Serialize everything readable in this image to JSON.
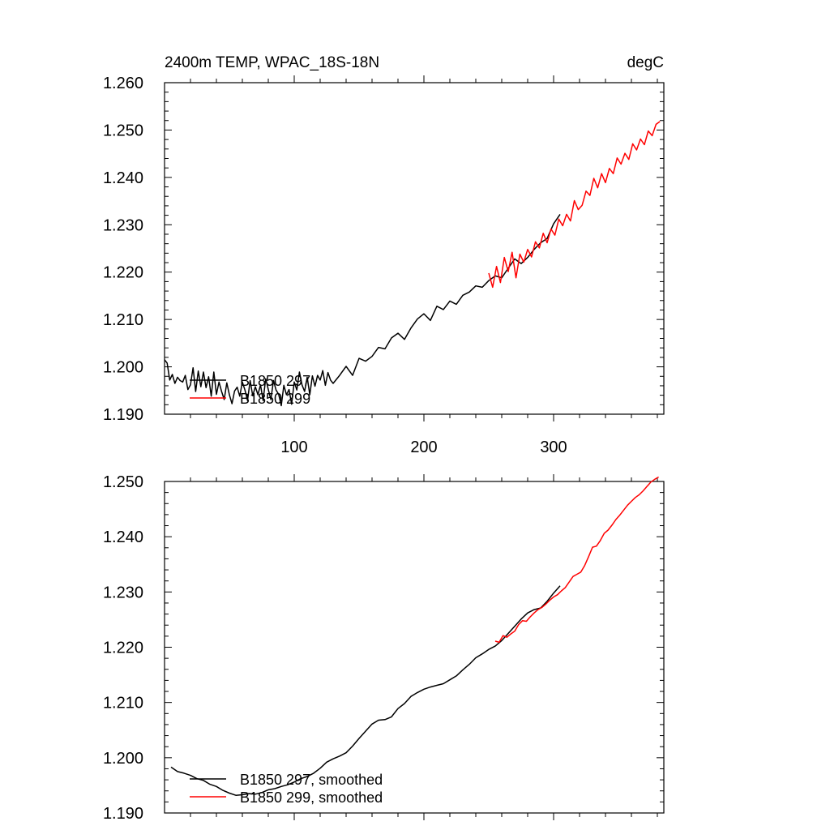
{
  "figure": {
    "background": "#ffffff",
    "axis_color": "#000000"
  },
  "chart_data": [
    {
      "id": "raw",
      "type": "line",
      "title_left": "2400m TEMP, WPAC_18S-18N",
      "title_right": "degC",
      "xlabel": "",
      "ylabel": "",
      "xlim": [
        0,
        385
      ],
      "ylim": [
        1.19,
        1.26
      ],
      "xticks": [
        100,
        200,
        300
      ],
      "xtick_labels": [
        "100",
        "200",
        "300"
      ],
      "yticks": [
        1.19,
        1.2,
        1.21,
        1.22,
        1.23,
        1.24,
        1.25,
        1.26
      ],
      "ytick_labels": [
        "1.190",
        "1.200",
        "1.210",
        "1.220",
        "1.230",
        "1.240",
        "1.250",
        "1.260"
      ],
      "legend": "bottom-left",
      "series": [
        {
          "name": "B1850 297",
          "color": "#000000",
          "x": [
            0,
            2,
            4,
            6,
            8,
            10,
            12,
            14,
            16,
            18,
            20,
            22,
            24,
            26,
            28,
            30,
            32,
            34,
            36,
            38,
            40,
            42,
            44,
            46,
            48,
            50,
            52,
            54,
            56,
            58,
            60,
            62,
            64,
            66,
            68,
            70,
            72,
            74,
            76,
            78,
            80,
            82,
            84,
            86,
            88,
            90,
            92,
            94,
            96,
            98,
            100,
            102,
            104,
            106,
            108,
            110,
            112,
            114,
            116,
            118,
            120,
            122,
            124,
            126,
            128,
            130,
            135,
            140,
            145,
            150,
            155,
            160,
            165,
            170,
            175,
            180,
            185,
            190,
            195,
            200,
            205,
            210,
            215,
            220,
            225,
            230,
            235,
            240,
            245,
            250,
            255,
            260,
            265,
            270,
            275,
            280,
            285,
            290,
            295,
            300,
            305
          ],
          "y": [
            1.2015,
            1.2008,
            1.1972,
            1.1984,
            1.1965,
            1.1978,
            1.1971,
            1.1968,
            1.1982,
            1.1952,
            1.1962,
            1.1998,
            1.1948,
            1.1991,
            1.1958,
            1.1989,
            1.1956,
            1.1979,
            1.1938,
            1.1989,
            1.1942,
            1.1968,
            1.1948,
            1.1931,
            1.1966,
            1.1941,
            1.1922,
            1.1949,
            1.1957,
            1.1938,
            1.1968,
            1.1951,
            1.1929,
            1.1971,
            1.1939,
            1.1958,
            1.1941,
            1.1962,
            1.1929,
            1.1975,
            1.1952,
            1.1931,
            1.1971,
            1.1951,
            1.1942,
            1.1918,
            1.1961,
            1.1941,
            1.1952,
            1.1921,
            1.1968,
            1.1951,
            1.1989,
            1.1962,
            1.1948,
            1.1978,
            1.1941,
            1.1981,
            1.1959,
            1.1982,
            1.1972,
            1.1992,
            1.1961,
            1.1988,
            1.1972,
            1.1965,
            1.1982,
            1.2001,
            1.1982,
            1.2018,
            1.2012,
            1.2022,
            1.2041,
            1.2038,
            1.2061,
            1.2071,
            1.2058,
            1.2082,
            1.2101,
            1.2112,
            1.2098,
            1.2128,
            1.2121,
            1.2139,
            1.2132,
            1.2151,
            1.2158,
            1.2171,
            1.2168,
            1.2182,
            1.2192,
            1.2188,
            1.2208,
            1.2228,
            1.2218,
            1.2231,
            1.2248,
            1.2262,
            1.2271,
            1.2302,
            1.2322
          ]
        },
        {
          "name": "B1850 299",
          "color": "#ff0000",
          "x": [
            250,
            253,
            256,
            259,
            262,
            265,
            268,
            271,
            274,
            277,
            280,
            283,
            286,
            289,
            292,
            295,
            298,
            301,
            304,
            307,
            310,
            313,
            316,
            319,
            322,
            325,
            328,
            331,
            334,
            337,
            340,
            343,
            346,
            349,
            352,
            355,
            358,
            361,
            364,
            367,
            370,
            373,
            376,
            379,
            382
          ],
          "y": [
            1.2198,
            1.2168,
            1.2212,
            1.2178,
            1.2231,
            1.2201,
            1.2242,
            1.2188,
            1.2238,
            1.2221,
            1.2248,
            1.2232,
            1.2264,
            1.2251,
            1.2282,
            1.2262,
            1.2291,
            1.2278,
            1.2312,
            1.2298,
            1.2322,
            1.2308,
            1.2351,
            1.2332,
            1.2341,
            1.2371,
            1.2362,
            1.2398,
            1.2378,
            1.2408,
            1.2389,
            1.2419,
            1.2408,
            1.2441,
            1.2428,
            1.2451,
            1.2438,
            1.2471,
            1.2458,
            1.2481,
            1.2469,
            1.2498,
            1.2488,
            1.2512,
            1.2518
          ]
        }
      ]
    },
    {
      "id": "smoothed",
      "type": "line",
      "xlabel": "",
      "ylabel": "",
      "xlim": [
        0,
        385
      ],
      "ylim": [
        1.19,
        1.25
      ],
      "xticks": [
        100,
        200,
        300
      ],
      "yticks": [
        1.19,
        1.2,
        1.21,
        1.22,
        1.23,
        1.24,
        1.25
      ],
      "ytick_labels": [
        "1.190",
        "1.200",
        "1.210",
        "1.220",
        "1.230",
        "1.240",
        "1.250"
      ],
      "legend": "bottom-left",
      "series": [
        {
          "name": "B1850 297, smoothed",
          "color": "#000000",
          "x": [
            5,
            10,
            15,
            20,
            25,
            30,
            35,
            40,
            45,
            50,
            55,
            60,
            65,
            70,
            75,
            80,
            85,
            90,
            95,
            100,
            105,
            110,
            115,
            120,
            125,
            130,
            135,
            140,
            145,
            150,
            155,
            160,
            165,
            170,
            175,
            180,
            185,
            190,
            195,
            200,
            205,
            210,
            215,
            220,
            225,
            230,
            235,
            240,
            245,
            250,
            255,
            260,
            265,
            270,
            275,
            280,
            285,
            290,
            295,
            300,
            305
          ],
          "y": [
            1.1983,
            1.1975,
            1.1972,
            1.1968,
            1.1962,
            1.1959,
            1.1952,
            1.1948,
            1.1941,
            1.1936,
            1.1932,
            1.1933,
            1.1935,
            1.1934,
            1.1937,
            1.1942,
            1.1944,
            1.1948,
            1.1951,
            1.1956,
            1.1962,
            1.1966,
            1.1972,
            1.1981,
            1.1992,
            1.1998,
            1.2003,
            1.2009,
            1.2021,
            1.2035,
            1.2048,
            1.2061,
            1.2068,
            1.2069,
            1.2074,
            1.2089,
            1.2098,
            1.2111,
            1.2118,
            1.2124,
            1.2128,
            1.2131,
            1.2134,
            1.2141,
            1.2148,
            1.2159,
            1.2169,
            1.2181,
            1.2188,
            1.2196,
            1.2202,
            1.2212,
            1.2225,
            1.2238,
            1.2251,
            1.2262,
            1.2268,
            1.2271,
            1.2283,
            1.2298,
            1.2311
          ]
        },
        {
          "name": "B1850 299, smoothed",
          "color": "#ff0000",
          "x": [
            255,
            258,
            261,
            264,
            267,
            270,
            273,
            276,
            279,
            282,
            285,
            288,
            291,
            294,
            297,
            300,
            303,
            306,
            309,
            312,
            315,
            318,
            321,
            324,
            327,
            330,
            333,
            336,
            339,
            342,
            345,
            348,
            351,
            354,
            357,
            360,
            363,
            366,
            369,
            372,
            375,
            378,
            381
          ],
          "y": [
            1.2211,
            1.2209,
            1.2221,
            1.2218,
            1.2224,
            1.2229,
            1.2241,
            1.2248,
            1.2247,
            1.2255,
            1.2262,
            1.2268,
            1.2272,
            1.2278,
            1.2285,
            1.2291,
            1.2295,
            1.2302,
            1.2308,
            1.2318,
            1.2328,
            1.2332,
            1.2336,
            1.2348,
            1.2364,
            1.2381,
            1.2383,
            1.2393,
            1.2406,
            1.2412,
            1.2421,
            1.2431,
            1.2439,
            1.2448,
            1.2457,
            1.2464,
            1.2471,
            1.2476,
            1.2483,
            1.2491,
            1.2499,
            1.2504,
            1.2508
          ]
        }
      ]
    }
  ]
}
